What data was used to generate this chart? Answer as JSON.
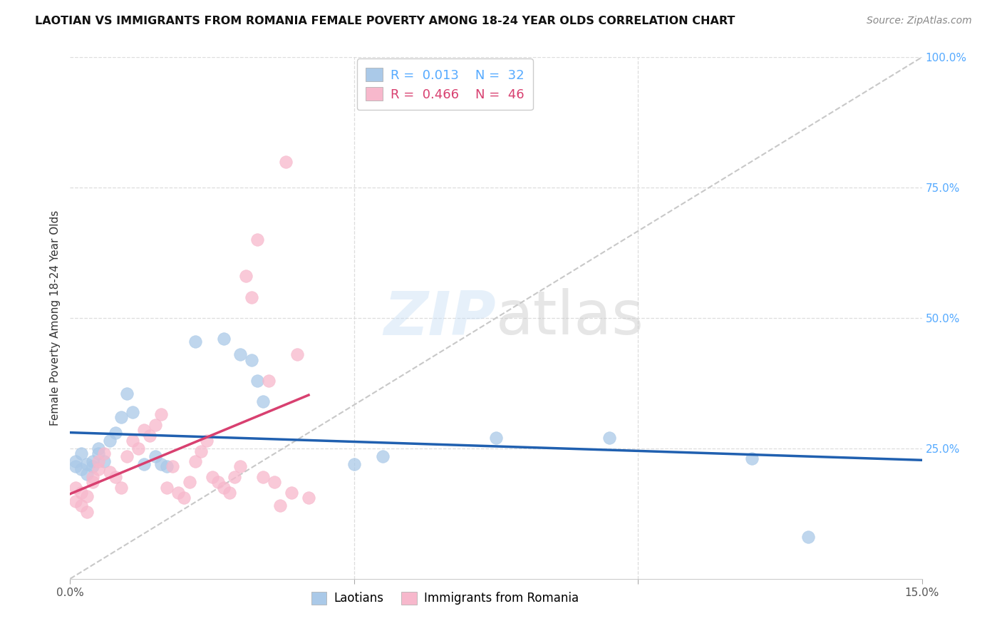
{
  "title": "LAOTIAN VS IMMIGRANTS FROM ROMANIA FEMALE POVERTY AMONG 18-24 YEAR OLDS CORRELATION CHART",
  "source": "Source: ZipAtlas.com",
  "ylabel": "Female Poverty Among 18-24 Year Olds",
  "xlim": [
    0.0,
    0.15
  ],
  "ylim": [
    0.0,
    1.0
  ],
  "series1_label": "Laotians",
  "series2_label": "Immigrants from Romania",
  "series1_color": "#aac9e8",
  "series2_color": "#f7b8cc",
  "series1_line_color": "#2060b0",
  "series2_line_color": "#d84070",
  "right_axis_color": "#55aaff",
  "watermark": "ZIPatlas",
  "laotian_x": [
    0.001,
    0.001,
    0.002,
    0.002,
    0.003,
    0.003,
    0.004,
    0.004,
    0.005,
    0.005,
    0.006,
    0.007,
    0.008,
    0.009,
    0.01,
    0.011,
    0.013,
    0.015,
    0.016,
    0.017,
    0.022,
    0.027,
    0.03,
    0.032,
    0.033,
    0.034,
    0.05,
    0.055,
    0.075,
    0.095,
    0.12,
    0.13
  ],
  "laotian_y": [
    0.215,
    0.225,
    0.21,
    0.24,
    0.22,
    0.2,
    0.225,
    0.215,
    0.25,
    0.24,
    0.225,
    0.265,
    0.28,
    0.31,
    0.355,
    0.32,
    0.22,
    0.235,
    0.22,
    0.215,
    0.455,
    0.46,
    0.43,
    0.42,
    0.38,
    0.34,
    0.22,
    0.235,
    0.27,
    0.27,
    0.23,
    0.08
  ],
  "romania_x": [
    0.001,
    0.001,
    0.002,
    0.002,
    0.003,
    0.003,
    0.004,
    0.004,
    0.005,
    0.005,
    0.006,
    0.007,
    0.008,
    0.009,
    0.01,
    0.011,
    0.012,
    0.013,
    0.014,
    0.015,
    0.016,
    0.017,
    0.018,
    0.019,
    0.02,
    0.021,
    0.022,
    0.023,
    0.024,
    0.025,
    0.026,
    0.027,
    0.028,
    0.029,
    0.03,
    0.031,
    0.032,
    0.033,
    0.034,
    0.035,
    0.036,
    0.037,
    0.038,
    0.039,
    0.04,
    0.042
  ],
  "romania_y": [
    0.175,
    0.148,
    0.165,
    0.14,
    0.158,
    0.128,
    0.195,
    0.185,
    0.21,
    0.225,
    0.24,
    0.205,
    0.195,
    0.175,
    0.235,
    0.265,
    0.25,
    0.285,
    0.275,
    0.295,
    0.315,
    0.175,
    0.215,
    0.165,
    0.155,
    0.185,
    0.225,
    0.245,
    0.265,
    0.195,
    0.185,
    0.175,
    0.165,
    0.195,
    0.215,
    0.58,
    0.54,
    0.65,
    0.195,
    0.38,
    0.185,
    0.14,
    0.8,
    0.165,
    0.43,
    0.155
  ]
}
